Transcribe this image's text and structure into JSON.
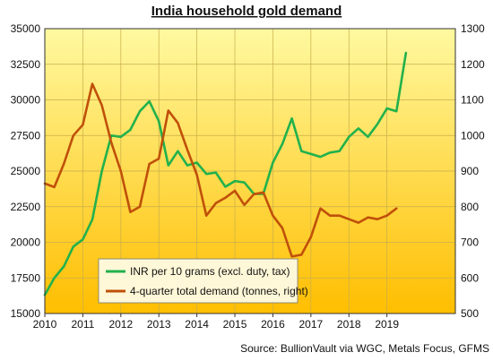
{
  "chart_data": {
    "type": "line",
    "title": "India household gold demand",
    "source": "Source: BullionVault via WGC, Metals Focus, GFMS",
    "x_ticks": [
      "2010",
      "2011",
      "2012",
      "2013",
      "2014",
      "2015",
      "2016",
      "2017",
      "2018",
      "2019"
    ],
    "xlim": [
      2010,
      2020.8
    ],
    "ylim_left": [
      15000,
      35000
    ],
    "ylim_right": [
      500,
      1300
    ],
    "y_ticks_left": [
      "15000",
      "17500",
      "20000",
      "22500",
      "25000",
      "27500",
      "30000",
      "32500",
      "35000"
    ],
    "y_ticks_right": [
      "500",
      "600",
      "700",
      "800",
      "900",
      "1000",
      "1100",
      "1200",
      "1300"
    ],
    "grid": true,
    "legend_position": "bottom-left",
    "colors": {
      "background_top": "#FFF9A0",
      "background_bottom": "#FFBE00",
      "inr_line": "#22B14C",
      "demand_line": "#C0500A",
      "grid": "#C8AE4A"
    },
    "series": [
      {
        "name": "INR per 10 grams (excl. duty, tax)",
        "axis": "left",
        "color": "#22B14C",
        "x": [
          2010.0,
          2010.25,
          2010.5,
          2010.75,
          2011.0,
          2011.25,
          2011.5,
          2011.75,
          2012.0,
          2012.25,
          2012.5,
          2012.75,
          2013.0,
          2013.25,
          2013.5,
          2013.75,
          2014.0,
          2014.25,
          2014.5,
          2014.75,
          2015.0,
          2015.25,
          2015.5,
          2015.75,
          2016.0,
          2016.25,
          2016.5,
          2016.75,
          2017.0,
          2017.25,
          2017.5,
          2017.75,
          2018.0,
          2018.25,
          2018.5,
          2018.75,
          2019.0,
          2019.25,
          2019.5
        ],
        "values": [
          16300,
          17500,
          18300,
          19700,
          20200,
          21600,
          25000,
          27500,
          27400,
          27900,
          29200,
          29900,
          28500,
          25400,
          26400,
          25400,
          25600,
          24800,
          24900,
          23900,
          24300,
          24200,
          23400,
          23400,
          25600,
          26900,
          28700,
          26400,
          26200,
          26000,
          26300,
          26400,
          27400,
          28000,
          27400,
          28300,
          29400,
          29200,
          33300
        ]
      },
      {
        "name": "4-quarter total demand (tonnes, right)",
        "axis": "right",
        "color": "#C0500A",
        "x": [
          2010.0,
          2010.25,
          2010.5,
          2010.75,
          2011.0,
          2011.25,
          2011.5,
          2011.75,
          2012.0,
          2012.25,
          2012.5,
          2012.75,
          2013.0,
          2013.25,
          2013.5,
          2013.75,
          2014.0,
          2014.25,
          2014.5,
          2014.75,
          2015.0,
          2015.25,
          2015.5,
          2015.75,
          2016.0,
          2016.25,
          2016.5,
          2016.75,
          2017.0,
          2017.25,
          2017.5,
          2017.75,
          2018.0,
          2018.25,
          2018.5,
          2018.75,
          2019.0,
          2019.25
        ],
        "values": [
          865,
          855,
          920,
          1000,
          1030,
          1145,
          1085,
          980,
          900,
          785,
          800,
          920,
          935,
          1070,
          1035,
          960,
          890,
          775,
          810,
          825,
          845,
          805,
          835,
          840,
          775,
          740,
          660,
          665,
          715,
          795,
          775,
          775,
          765,
          755,
          770,
          765,
          775,
          795
        ]
      }
    ]
  }
}
